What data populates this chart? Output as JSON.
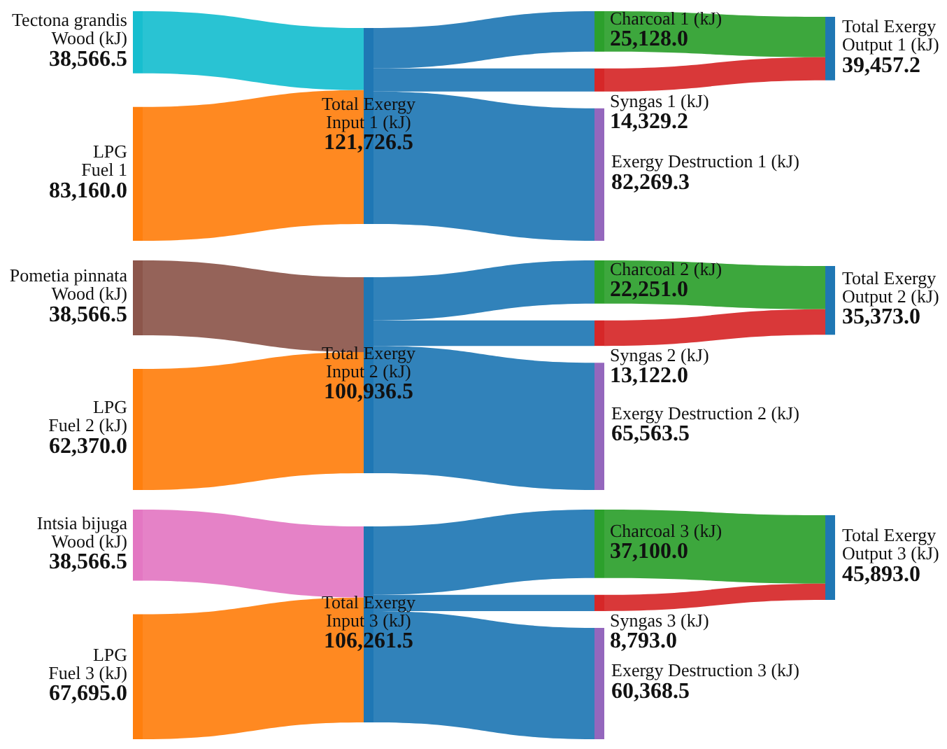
{
  "chart_data": [
    {
      "type": "other",
      "categories": [
        "Tectona grandis\nWood (kJ)",
        "LPG\nFuel 1",
        "Total Exergy\nInput 1 (kJ)",
        "Charcoal 1 (kJ)",
        "Syngas 1 (kJ)",
        "Exergy Destruction 1 (kJ)",
        "Total Exergy\nOutput 1 (kJ)"
      ],
      "values": [
        38566.5,
        83160.0,
        121726.5,
        25128.0,
        14329.2,
        82269.3,
        39457.2
      ],
      "value_labels": [
        "38,566.5",
        "83,160.0",
        "121,726.5",
        "25,128.0",
        "14,329.2",
        "82,269.3",
        "39,457.2"
      ],
      "colors": [
        "#17becf",
        "#ff7f0e",
        "#1f77b4",
        "#2ca02c",
        "#d62728",
        "#9467bd",
        "#1f77b4"
      ]
    },
    {
      "type": "other",
      "categories": [
        "Pometia pinnata\nWood (kJ)",
        "LPG\nFuel 2 (kJ)",
        "Total Exergy\nInput 2 (kJ)",
        "Charcoal 2 (kJ)",
        "Syngas 2 (kJ)",
        "Exergy Destruction 2 (kJ)",
        "Total Exergy\nOutput 2 (kJ)"
      ],
      "values": [
        38566.5,
        62370.0,
        100936.5,
        22251.0,
        13122.0,
        65563.5,
        35373.0
      ],
      "value_labels": [
        "38,566.5",
        "62,370.0",
        "100,936.5",
        "22,251.0",
        "13,122.0",
        "65,563.5",
        "35,373.0"
      ],
      "colors": [
        "#8c564b",
        "#ff7f0e",
        "#1f77b4",
        "#2ca02c",
        "#d62728",
        "#9467bd",
        "#1f77b4"
      ]
    },
    {
      "type": "other",
      "categories": [
        "Intsia bijuga\nWood (kJ)",
        "LPG\nFuel 3 (kJ)",
        "Total Exergy\nInput 3 (kJ)",
        "Charcoal 3 (kJ)",
        "Syngas 3 (kJ)",
        "Exergy Destruction 3 (kJ)",
        "Total Exergy\nOutput 3 (kJ)"
      ],
      "values": [
        38566.5,
        67695.0,
        106261.5,
        37100.0,
        8793.0,
        60368.5,
        45893.0
      ],
      "value_labels": [
        "38,566.5",
        "67,695.0",
        "106,261.5",
        "37,100.0",
        "8,793.0",
        "60,368.5",
        "45,893.0"
      ],
      "colors": [
        "#e377c2",
        "#ff7f0e",
        "#1f77b4",
        "#2ca02c",
        "#d62728",
        "#9467bd",
        "#1f77b4"
      ]
    }
  ]
}
